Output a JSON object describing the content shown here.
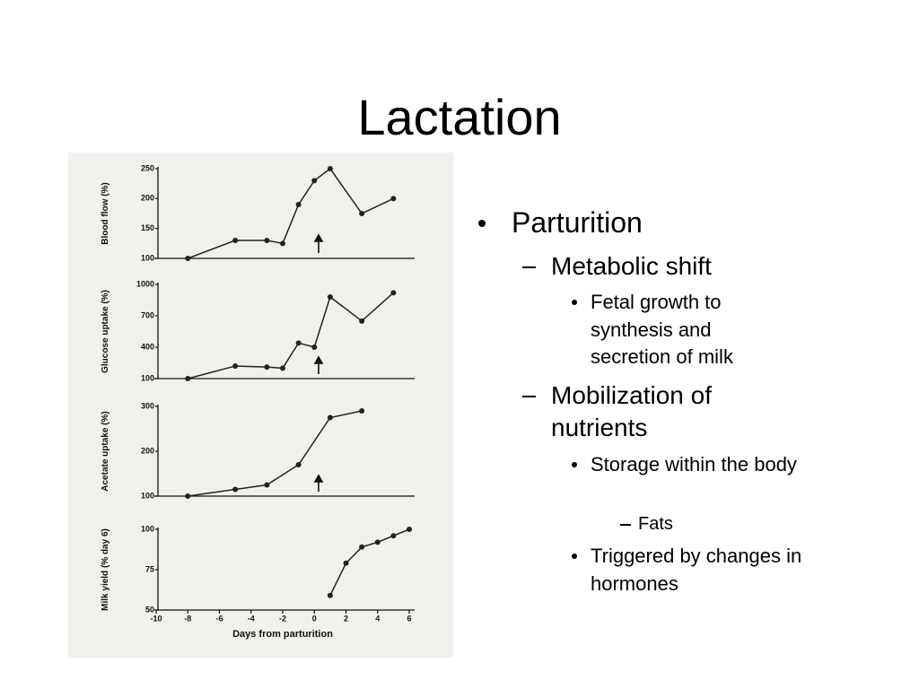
{
  "title": "Lactation",
  "bullets": [
    {
      "text": "Parturition",
      "items": [
        {
          "text": "Metabolic shift",
          "items": [
            {
              "text": "Fetal growth to synthesis and secretion of milk"
            }
          ]
        },
        {
          "text": "Mobilization of nutrients",
          "items": [
            {
              "text": "Storage within the body",
              "items": [
                {
                  "text": "Fats"
                }
              ]
            },
            {
              "text": "Triggered by changes in hormones"
            }
          ]
        }
      ]
    }
  ],
  "chart_data": [
    {
      "type": "line",
      "ylabel": "Blood flow (%)",
      "x": [
        -8,
        -5,
        -3,
        -2,
        -1,
        0,
        1,
        3,
        5
      ],
      "values": [
        100,
        130,
        130,
        125,
        190,
        230,
        250,
        175,
        200
      ],
      "xlim": [
        -10,
        6
      ],
      "ylim": [
        100,
        250
      ],
      "yticks": [
        100,
        150,
        200,
        250
      ],
      "color": "#222"
    },
    {
      "type": "line",
      "ylabel": "Glucose uptake (%)",
      "x": [
        -8,
        -5,
        -3,
        -2,
        -1,
        0,
        1,
        3,
        5
      ],
      "values": [
        100,
        220,
        210,
        200,
        440,
        400,
        880,
        650,
        920
      ],
      "xlim": [
        -10,
        6
      ],
      "ylim": [
        100,
        1000
      ],
      "yticks": [
        100,
        400,
        700,
        1000
      ],
      "color": "#222"
    },
    {
      "type": "line",
      "ylabel": "Acetate uptake (%)",
      "x": [
        -8,
        -5,
        -3,
        -1,
        1,
        3
      ],
      "values": [
        100,
        115,
        125,
        170,
        275,
        290
      ],
      "xlim": [
        -10,
        6
      ],
      "ylim": [
        100,
        300
      ],
      "yticks": [
        100,
        200,
        300
      ],
      "color": "#222"
    },
    {
      "type": "line",
      "ylabel": "Milk yield (% day 6)",
      "xlabel": "Days from parturition",
      "x": [
        1,
        2,
        3,
        4,
        5,
        6
      ],
      "values": [
        59,
        79,
        89,
        92,
        96,
        100
      ],
      "xlim": [
        -10,
        6
      ],
      "ylim": [
        50,
        100
      ],
      "yticks": [
        50,
        75,
        100
      ],
      "xticks": [
        -10,
        -8,
        -6,
        -4,
        -2,
        0,
        2,
        4,
        6
      ],
      "color": "#222"
    }
  ]
}
